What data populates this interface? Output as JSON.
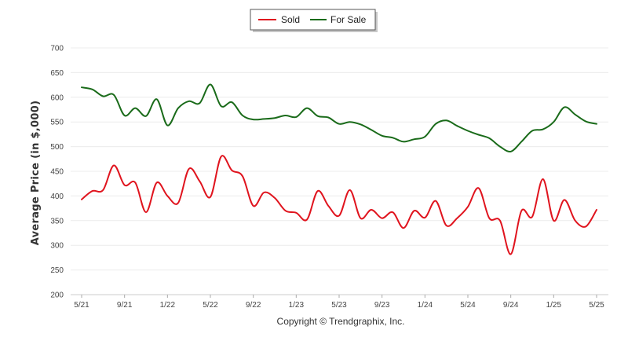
{
  "chart_data": {
    "type": "line",
    "title": "",
    "xlabel": "",
    "ylabel": "Average Price (in $,000)",
    "ylim": [
      200,
      700
    ],
    "yticks": [
      200,
      250,
      300,
      350,
      400,
      450,
      500,
      550,
      600,
      650,
      700
    ],
    "xlim": [
      0,
      48
    ],
    "xticks": [
      {
        "x": 0,
        "label": "5/21"
      },
      {
        "x": 4,
        "label": "9/21"
      },
      {
        "x": 8,
        "label": "1/22"
      },
      {
        "x": 12,
        "label": "5/22"
      },
      {
        "x": 16,
        "label": "9/22"
      },
      {
        "x": 20,
        "label": "1/23"
      },
      {
        "x": 24,
        "label": "5/23"
      },
      {
        "x": 28,
        "label": "9/23"
      },
      {
        "x": 32,
        "label": "1/24"
      },
      {
        "x": 36,
        "label": "5/24"
      },
      {
        "x": 40,
        "label": "9/24"
      },
      {
        "x": 44,
        "label": "1/25"
      },
      {
        "x": 48,
        "label": "5/25"
      }
    ],
    "grid": true,
    "legend_position": "top-center",
    "copyright": "Copyright © Trendgraphix, Inc.",
    "series": [
      {
        "name": "Sold",
        "color": "#e0141e",
        "values": [
          393,
          410,
          412,
          462,
          422,
          427,
          367,
          427,
          400,
          386,
          455,
          430,
          398,
          480,
          452,
          440,
          380,
          407,
          396,
          370,
          366,
          352,
          410,
          380,
          360,
          412,
          355,
          372,
          355,
          367,
          335,
          370,
          356,
          390,
          340,
          355,
          378,
          416,
          355,
          350,
          282,
          370,
          358,
          434,
          350,
          392,
          350,
          338,
          372
        ]
      },
      {
        "name": "For Sale",
        "color": "#1a6b1a",
        "values": [
          620,
          616,
          602,
          605,
          563,
          578,
          562,
          596,
          543,
          578,
          592,
          588,
          626,
          582,
          590,
          563,
          555,
          556,
          558,
          563,
          560,
          578,
          562,
          559,
          546,
          550,
          545,
          534,
          522,
          518,
          510,
          515,
          520,
          546,
          553,
          542,
          532,
          524,
          517,
          500,
          490,
          510,
          532,
          535,
          550,
          580,
          565,
          551,
          546
        ]
      }
    ]
  }
}
